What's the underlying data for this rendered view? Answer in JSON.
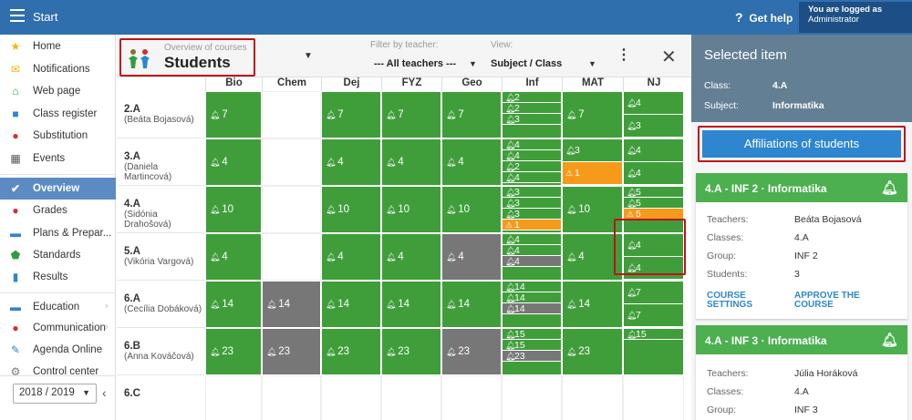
{
  "topbar": {
    "title": "Start",
    "help": "Get help",
    "login_line1": "You are logged as",
    "login_line2": "Administrator"
  },
  "sidebar": {
    "items": [
      {
        "label": "Home",
        "icon": "star-icon",
        "color": "#f4b400"
      },
      {
        "label": "Notifications",
        "icon": "envelope-icon",
        "color": "#f4b400"
      },
      {
        "label": "Web page",
        "icon": "house-icon",
        "color": "#2e9e3e"
      },
      {
        "label": "Class register",
        "icon": "register-icon",
        "color": "#2e86d1"
      },
      {
        "label": "Substitution",
        "icon": "person-icon",
        "color": "#d32f2f"
      },
      {
        "label": "Events",
        "icon": "calendar-icon",
        "color": "#555555"
      },
      {
        "label": "Overview",
        "icon": "check-circle-icon",
        "color": "#ffffff"
      },
      {
        "label": "Grades",
        "icon": "grade-icon",
        "color": "#d32f2f"
      },
      {
        "label": "Plans & Prepar...",
        "icon": "briefcase-icon",
        "color": "#2e86d1"
      },
      {
        "label": "Standards",
        "icon": "shield-icon",
        "color": "#2e9e3e"
      },
      {
        "label": "Results",
        "icon": "bar-chart-icon",
        "color": "#2e86d1"
      },
      {
        "label": "Education",
        "icon": "education-icon",
        "color": "#2e86d1"
      },
      {
        "label": "Communication",
        "icon": "chat-icon",
        "color": "#d32f2f"
      },
      {
        "label": "Agenda Online",
        "icon": "pen-icon",
        "color": "#2e86d1"
      },
      {
        "label": "Control center",
        "icon": "gear-icon",
        "color": "#777777"
      }
    ],
    "year": "2018 / 2019"
  },
  "header": {
    "overview_sub": "Overview of courses",
    "overview_main": "Students",
    "filter_label": "Filter by teacher:",
    "filter_value": "--- All teachers ---",
    "view_label": "View:",
    "view_value": "Subject / Class"
  },
  "grid": {
    "subjects": [
      "Bio",
      "Chem",
      "Dej",
      "FYZ",
      "Geo",
      "Inf",
      "MAT",
      "NJ"
    ],
    "classes": [
      {
        "name": "2.A",
        "teacher": "(Beáta Bojasová)"
      },
      {
        "name": "3.A",
        "teacher": "(Daniela Martincová)"
      },
      {
        "name": "4.A",
        "teacher": "(Sidónia Drahošová)"
      },
      {
        "name": "5.A",
        "teacher": "(Vikória Vargová)"
      },
      {
        "name": "6.A",
        "teacher": "(Cecília Dobáková)"
      },
      {
        "name": "6.B",
        "teacher": "(Anna Kováčová)"
      },
      {
        "name": "6.C",
        "teacher": ""
      }
    ],
    "cells": [
      [
        "7",
        "",
        "7",
        "7",
        "7",
        [
          "2",
          "2",
          "3"
        ],
        "7",
        [
          "4",
          "3"
        ]
      ],
      [
        "4",
        "",
        "4",
        "4",
        "4",
        [
          "4",
          "4",
          "2",
          "4"
        ],
        [
          "3",
          "1"
        ],
        [
          "4",
          "4"
        ]
      ],
      [
        "10",
        "",
        "10",
        "10",
        "10",
        [
          "3",
          "3",
          "3",
          "1"
        ],
        "10",
        [
          "5",
          "5",
          "5"
        ]
      ],
      [
        "4",
        "",
        "4",
        "4",
        "4",
        [
          "4",
          "4",
          "4"
        ],
        "4",
        [
          "4",
          "4"
        ]
      ],
      [
        "14",
        "14",
        "14",
        "14",
        "14",
        [
          "14",
          "14",
          "14"
        ],
        "14",
        [
          "7",
          "7"
        ]
      ],
      [
        "23",
        "23",
        "23",
        "23",
        "23",
        [
          "15",
          "15",
          "23"
        ],
        "23",
        [
          "15"
        ]
      ],
      [
        "",
        "",
        "",
        "",
        "",
        "",
        "",
        ""
      ]
    ]
  },
  "right_panel": {
    "title": "Selected item",
    "class_label": "Class:",
    "class_value": "4.A",
    "subject_label": "Subject:",
    "subject_value": "Informatika",
    "affiliations_btn": "Affiliations of students",
    "cards": [
      {
        "title": "4.A - INF 2 · Informatika",
        "teachers_label": "Teachers:",
        "teachers": "Beáta Bojasová",
        "classes_label": "Classes:",
        "classes": "4.A",
        "group_label": "Group:",
        "group": "INF 2",
        "students_label": "Students:",
        "students": "3",
        "link1": "COURSE SETTINGS",
        "link2": "APPROVE THE COURSE"
      },
      {
        "title": "4.A - INF 3 · Informatika",
        "teachers_label": "Teachers:",
        "teachers": "Júlia Horáková",
        "classes_label": "Classes:",
        "classes": "4.A",
        "group_label": "Group:",
        "group": "INF 3"
      }
    ]
  },
  "colors": {
    "topbar": "#2f6fad",
    "green": "#3f9e3a",
    "orange": "#f59a1b",
    "gray": "#777777",
    "red": "#c0111a",
    "accent": "#2e86d1"
  }
}
